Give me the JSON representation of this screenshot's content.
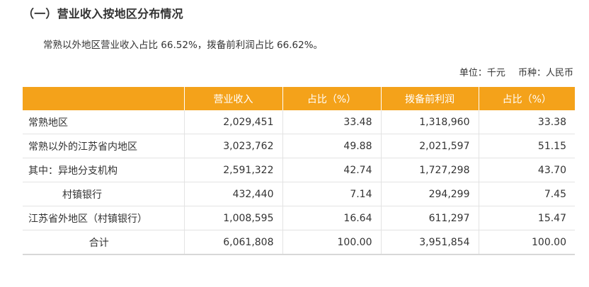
{
  "section_title": "（一）营业收入按地区分布情况",
  "intro": "常熟以外地区营业收入占比 66.52%，拨备前利润占比 66.62%。",
  "unit": "单位：千元",
  "currency": "币种：人民币",
  "table": {
    "headers": [
      "",
      "营业收入",
      "占比（%）",
      "拨备前利润",
      "占比（%）"
    ],
    "rows": [
      {
        "label": "常熟地区",
        "revenue": "2,029,451",
        "revenue_share": "33.48",
        "profit": "1,318,960",
        "profit_share": "33.38"
      },
      {
        "label": "常熟以外的江苏省内地区",
        "revenue": "3,023,762",
        "revenue_share": "49.88",
        "profit": "2,021,597",
        "profit_share": "51.15"
      },
      {
        "label": "其中：异地分支机构",
        "revenue": "2,591,322",
        "revenue_share": "42.74",
        "profit": "1,727,298",
        "profit_share": "43.70"
      },
      {
        "label": "村镇银行",
        "revenue": "432,440",
        "revenue_share": "7.14",
        "profit": "294,299",
        "profit_share": "7.45"
      },
      {
        "label": "江苏省外地区（村镇银行）",
        "revenue": "1,008,595",
        "revenue_share": "16.64",
        "profit": "611,297",
        "profit_share": "15.47"
      },
      {
        "label": "合计",
        "revenue": "6,061,808",
        "revenue_share": "100.00",
        "profit": "3,951,854",
        "profit_share": "100.00"
      }
    ]
  },
  "colors": {
    "header_bg": "#f4a21a",
    "header_text": "#ffffff",
    "grid": "#e3e3e3",
    "text": "#333333"
  }
}
